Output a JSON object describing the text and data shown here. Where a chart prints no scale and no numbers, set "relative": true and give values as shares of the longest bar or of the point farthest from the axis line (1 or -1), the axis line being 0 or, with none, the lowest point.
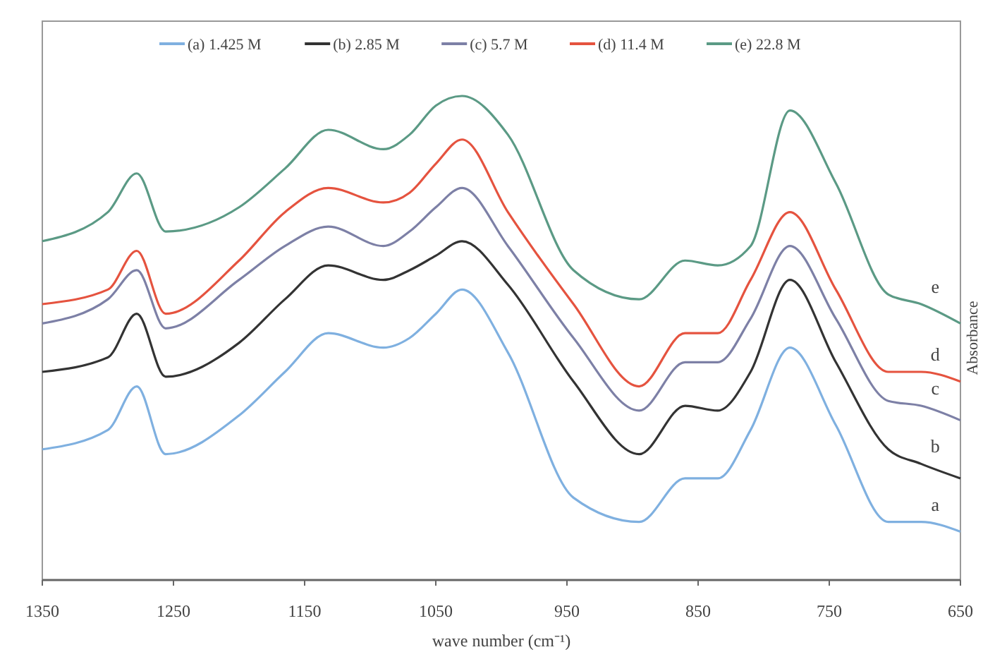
{
  "chart_data": {
    "type": "line",
    "relative": true,
    "xlabel": "wave number (cm⁻¹)",
    "ylabel": "Absorbance",
    "x": [
      1350,
      1300,
      1278,
      1256,
      1200,
      1165,
      1132,
      1090,
      1070,
      1050,
      1030,
      995,
      945,
      895,
      860,
      835,
      810,
      780,
      745,
      705,
      680,
      650
    ],
    "xlim": [
      1350,
      650
    ],
    "xticks": [
      1350,
      1250,
      1150,
      1050,
      950,
      850,
      750,
      650
    ],
    "legend": "top",
    "grid": false,
    "marker": "none",
    "line_style": "solid",
    "series": [
      {
        "name": "(a) 1.425 M",
        "color": "#7fb0e0",
        "values": [
          0.27,
          0.31,
          0.4,
          0.26,
          0.34,
          0.43,
          0.51,
          0.48,
          0.5,
          0.55,
          0.6,
          0.47,
          0.17,
          0.12,
          0.21,
          0.21,
          0.31,
          0.48,
          0.32,
          0.12,
          0.12,
          0.1
        ]
      },
      {
        "name": "(b) 2.85 M",
        "color": "#333333",
        "values": [
          0.43,
          0.46,
          0.55,
          0.42,
          0.49,
          0.58,
          0.65,
          0.62,
          0.64,
          0.67,
          0.7,
          0.61,
          0.41,
          0.26,
          0.36,
          0.35,
          0.43,
          0.62,
          0.45,
          0.27,
          0.24,
          0.21
        ]
      },
      {
        "name": "(c) 5.7 M",
        "color": "#7d80a6",
        "values": [
          0.53,
          0.58,
          0.64,
          0.52,
          0.62,
          0.69,
          0.73,
          0.69,
          0.72,
          0.77,
          0.81,
          0.69,
          0.5,
          0.35,
          0.45,
          0.45,
          0.54,
          0.69,
          0.54,
          0.37,
          0.36,
          0.33
        ]
      },
      {
        "name": "(d) 11.4 M",
        "color": "#e5533f",
        "values": [
          0.57,
          0.6,
          0.68,
          0.55,
          0.66,
          0.76,
          0.81,
          0.78,
          0.8,
          0.86,
          0.91,
          0.76,
          0.57,
          0.4,
          0.51,
          0.51,
          0.62,
          0.76,
          0.6,
          0.43,
          0.43,
          0.41
        ]
      },
      {
        "name": "(e) 22.8 M",
        "color": "#5b9a85",
        "values": [
          0.7,
          0.76,
          0.84,
          0.72,
          0.77,
          0.85,
          0.93,
          0.89,
          0.92,
          0.98,
          1.0,
          0.92,
          0.64,
          0.58,
          0.66,
          0.65,
          0.69,
          0.97,
          0.82,
          0.59,
          0.57,
          0.53
        ]
      }
    ],
    "annotations": [
      "e",
      "d",
      "c",
      "b",
      "a"
    ]
  }
}
